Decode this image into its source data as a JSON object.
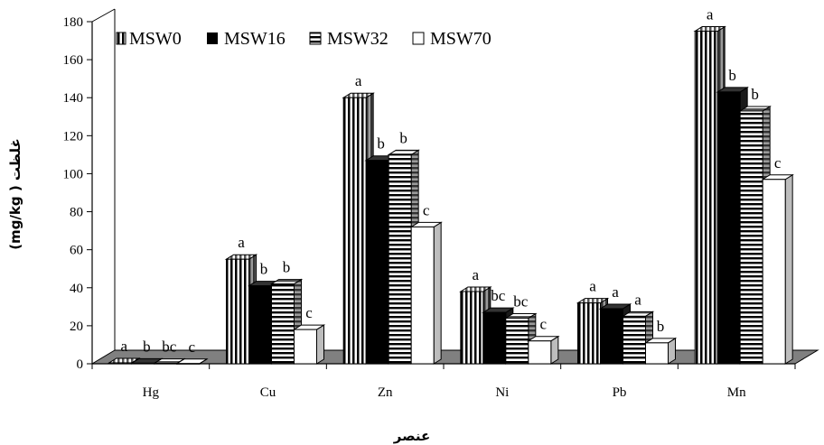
{
  "chart_data": {
    "type": "bar",
    "title": "",
    "xlabel": "عنصر",
    "ylabel": "(mg/kg ) غلظت",
    "ylim": [
      0,
      180
    ],
    "yticks": [
      "0",
      "20",
      "40",
      "60",
      "80",
      "100",
      "120",
      "140",
      "160",
      "180"
    ],
    "categories": [
      "Hg",
      "Cu",
      "Zn",
      "Ni",
      "Pb",
      "Mn"
    ],
    "legend_position": "top-left",
    "series": [
      {
        "name": "MSW0",
        "pattern": "vertical-stripes",
        "values": [
          0.5,
          55,
          140,
          38,
          32,
          175
        ],
        "labels": [
          "a",
          "a",
          "a",
          "a",
          "a",
          "a"
        ]
      },
      {
        "name": "MSW16",
        "pattern": "solid-black",
        "values": [
          0.3,
          41,
          107,
          27,
          29,
          143
        ],
        "labels": [
          "b",
          "b",
          "b",
          "bc",
          "a",
          "b"
        ]
      },
      {
        "name": "MSW32",
        "pattern": "horizontal-stripes",
        "values": [
          0.2,
          42,
          110,
          24,
          25,
          133
        ],
        "labels": [
          "bc",
          "b",
          "b",
          "bc",
          "a",
          "b"
        ]
      },
      {
        "name": "MSW70",
        "pattern": "white",
        "values": [
          0.1,
          18,
          72,
          12,
          11,
          97
        ],
        "labels": [
          "c",
          "c",
          "c",
          "c",
          "b",
          "c"
        ]
      }
    ],
    "colors": {
      "bar_fill_dark": "#000000",
      "floor": "#808080",
      "side": "#7a7a7a",
      "white": "#ffffff"
    }
  }
}
